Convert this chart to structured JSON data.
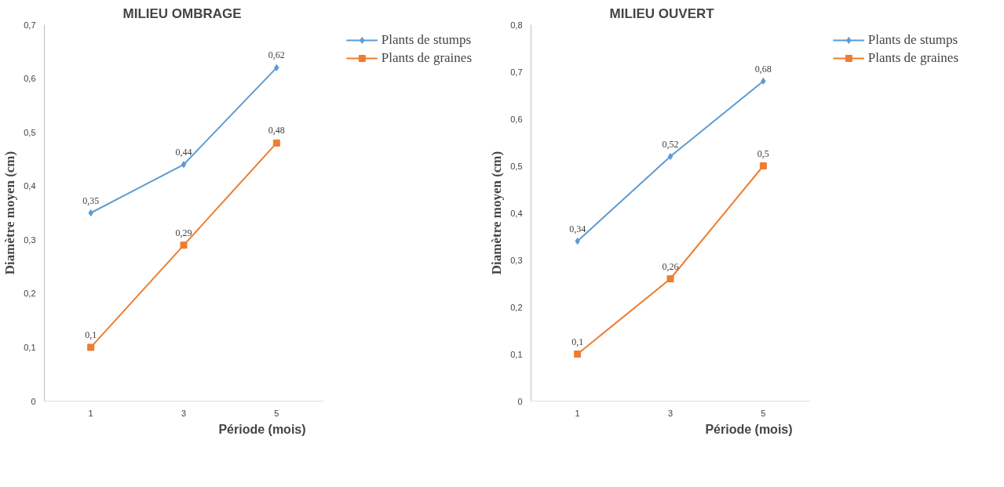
{
  "chart_data": [
    {
      "type": "line",
      "title": "MILIEU OMBRAGE",
      "xlabel": "Période (mois)",
      "ylabel": "Diamètre moyen (cm)",
      "categories": [
        "1",
        "3",
        "5"
      ],
      "ylim": [
        0,
        0.7
      ],
      "yticks": [
        0,
        {
          "value": 0.1,
          "label": "0,1"
        },
        {
          "value": 0.2,
          "label": "0,2"
        },
        {
          "value": 0.3,
          "label": "0,3"
        },
        {
          "value": 0.4,
          "label": "0,4"
        },
        {
          "value": 0.5,
          "label": "0,5"
        },
        {
          "value": 0.6,
          "label": "0,6"
        },
        {
          "value": 0.7,
          "label": "0,7"
        }
      ],
      "grid": false,
      "legend": "top right",
      "series": [
        {
          "name": "Plants de stumps",
          "color": "#5b9bd5",
          "marker": "diamond",
          "values": [
            0.35,
            0.44,
            0.62
          ],
          "value_labels": [
            "0,35",
            "0,44",
            "0,62"
          ]
        },
        {
          "name": "Plants de graines",
          "color": "#ed7d31",
          "marker": "square",
          "values": [
            0.1,
            0.29,
            0.48
          ],
          "value_labels": [
            "0,1",
            "0,29",
            "0,48"
          ]
        }
      ]
    },
    {
      "type": "line",
      "title": "MILIEU OUVERT",
      "xlabel": "Période (mois)",
      "ylabel": "Diamètre moyen (cm)",
      "categories": [
        "1",
        "3",
        "5"
      ],
      "ylim": [
        0,
        0.8
      ],
      "yticks": [
        0,
        {
          "value": 0.1,
          "label": "0,1"
        },
        {
          "value": 0.2,
          "label": "0,2"
        },
        {
          "value": 0.3,
          "label": "0,3"
        },
        {
          "value": 0.4,
          "label": "0,4"
        },
        {
          "value": 0.5,
          "label": "0,5"
        },
        {
          "value": 0.6,
          "label": "0,6"
        },
        {
          "value": 0.7,
          "label": "0,7"
        },
        {
          "value": 0.8,
          "label": "0,8"
        }
      ],
      "grid": false,
      "legend": "top right",
      "series": [
        {
          "name": "Plants de stumps",
          "color": "#5b9bd5",
          "marker": "diamond",
          "values": [
            0.34,
            0.52,
            0.68
          ],
          "value_labels": [
            "0,34",
            "0,52",
            "0,68"
          ]
        },
        {
          "name": "Plants de graines",
          "color": "#ed7d31",
          "marker": "square",
          "values": [
            0.1,
            0.26,
            0.5
          ],
          "value_labels": [
            "0,1",
            "0,26",
            "0,5"
          ]
        }
      ]
    }
  ]
}
